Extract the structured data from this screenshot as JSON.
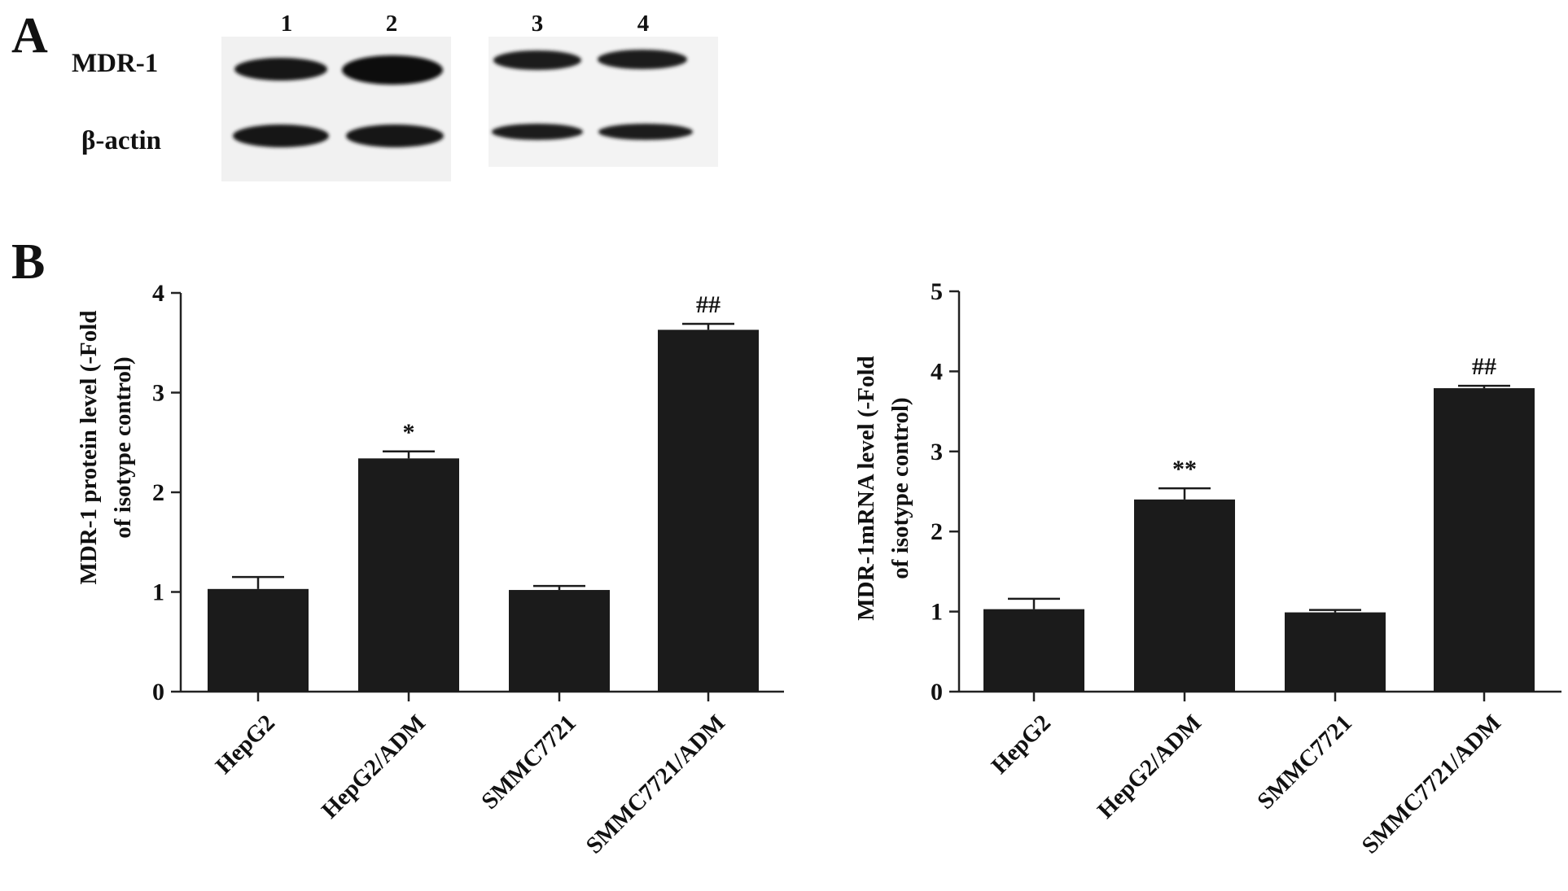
{
  "panels": {
    "a_letter": "A",
    "b_letter": "B"
  },
  "blot": {
    "lanes": [
      "1",
      "2",
      "3",
      "4"
    ],
    "rows": [
      {
        "label": "MDR-1"
      },
      {
        "label": "β-actin"
      }
    ]
  },
  "chart_data": [
    {
      "type": "bar",
      "categories": [
        "HepG2",
        "HepG2/ADM",
        "SMMC7721",
        "SMMC7721/ADM"
      ],
      "values": [
        1.03,
        2.34,
        1.02,
        3.63
      ],
      "errors": [
        0.12,
        0.07,
        0.04,
        0.06
      ],
      "significance": [
        "",
        "*",
        "",
        "##"
      ],
      "ylabel_line1": "MDR-1 protein level (-Fold",
      "ylabel_line2": "of isotype control)",
      "ylim": [
        0,
        4
      ],
      "yticks": [
        "0",
        "1",
        "2",
        "3",
        "4"
      ]
    },
    {
      "type": "bar",
      "categories": [
        "HepG2",
        "HepG2/ADM",
        "SMMC7721",
        "SMMC7721/ADM"
      ],
      "values": [
        1.03,
        2.4,
        0.99,
        3.79
      ],
      "errors": [
        0.13,
        0.14,
        0.03,
        0.03
      ],
      "significance": [
        "",
        "**",
        "",
        "##"
      ],
      "ylabel_line1": "MDR-1mRNA level (-Fold",
      "ylabel_line2": "of isotype control)",
      "ylim": [
        0,
        5
      ],
      "yticks": [
        "0",
        "1",
        "2",
        "3",
        "4",
        "5"
      ]
    }
  ]
}
